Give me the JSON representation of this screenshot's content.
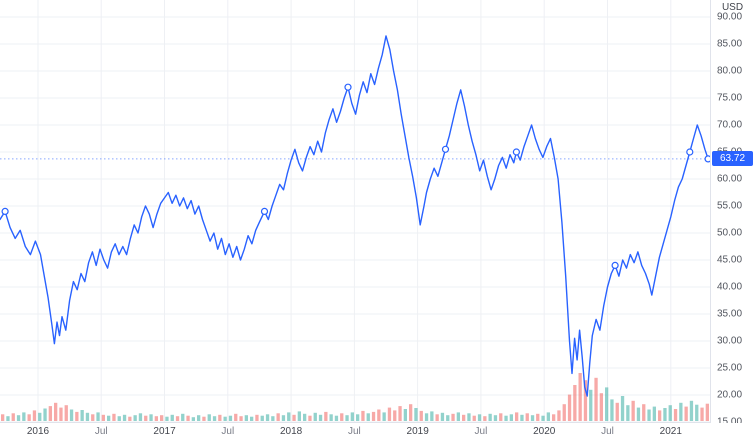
{
  "chart_data": {
    "type": "line",
    "title": "",
    "currency": "USD",
    "last_price": 63.72,
    "last_price_label": "63.72",
    "line_color": "#2962ff",
    "up_color": "#26a69a",
    "down_color": "#ef5350",
    "grid_color": "#eef0f4",
    "xlim": [
      2015.7,
      2021.31
    ],
    "ylim": [
      15,
      90
    ],
    "y_ticks": [
      90,
      85,
      80,
      75,
      70,
      65,
      60,
      55,
      50,
      45,
      40,
      35,
      30,
      25,
      20,
      15
    ],
    "y_tick_labels": [
      "90.00",
      "85.00",
      "80.00",
      "75.00",
      "70.00",
      "65.00",
      "60.00",
      "55.00",
      "50.00",
      "45.00",
      "40.00",
      "35.00",
      "30.00",
      "25.00",
      "20.00",
      "15.00"
    ],
    "x_ticks": [
      {
        "v": 2016,
        "label": "2016",
        "major": true
      },
      {
        "v": 2016.5,
        "label": "Jul",
        "major": false
      },
      {
        "v": 2017,
        "label": "2017",
        "major": true
      },
      {
        "v": 2017.5,
        "label": "Jul",
        "major": false
      },
      {
        "v": 2018,
        "label": "2018",
        "major": true
      },
      {
        "v": 2018.5,
        "label": "Jul",
        "major": false
      },
      {
        "v": 2019,
        "label": "2019",
        "major": true
      },
      {
        "v": 2019.5,
        "label": "Jul",
        "major": false
      },
      {
        "v": 2020,
        "label": "2020",
        "major": true
      },
      {
        "v": 2020.5,
        "label": "Jul",
        "major": false
      },
      {
        "v": 2021,
        "label": "2021",
        "major": true
      }
    ],
    "markers": [
      2015.74,
      2017.79,
      2018.45,
      2019.22,
      2019.78,
      2020.56,
      2021.15,
      2021.295
    ],
    "points": [
      [
        2015.7,
        52.5
      ],
      [
        2015.74,
        54.0
      ],
      [
        2015.78,
        51.0
      ],
      [
        2015.82,
        49.0
      ],
      [
        2015.86,
        50.5
      ],
      [
        2015.9,
        47.5
      ],
      [
        2015.94,
        46.0
      ],
      [
        2015.98,
        48.5
      ],
      [
        2016.02,
        46.0
      ],
      [
        2016.05,
        42.0
      ],
      [
        2016.08,
        38.0
      ],
      [
        2016.11,
        33.0
      ],
      [
        2016.13,
        29.5
      ],
      [
        2016.15,
        33.5
      ],
      [
        2016.17,
        31.0
      ],
      [
        2016.19,
        34.5
      ],
      [
        2016.22,
        32.0
      ],
      [
        2016.25,
        37.5
      ],
      [
        2016.28,
        41.0
      ],
      [
        2016.31,
        39.5
      ],
      [
        2016.34,
        42.5
      ],
      [
        2016.37,
        41.0
      ],
      [
        2016.4,
        44.5
      ],
      [
        2016.43,
        46.5
      ],
      [
        2016.46,
        44.0
      ],
      [
        2016.49,
        47.0
      ],
      [
        2016.52,
        45.0
      ],
      [
        2016.55,
        43.5
      ],
      [
        2016.58,
        46.5
      ],
      [
        2016.61,
        48.0
      ],
      [
        2016.64,
        46.0
      ],
      [
        2016.67,
        47.5
      ],
      [
        2016.7,
        46.0
      ],
      [
        2016.73,
        49.0
      ],
      [
        2016.76,
        51.5
      ],
      [
        2016.79,
        50.0
      ],
      [
        2016.82,
        53.0
      ],
      [
        2016.85,
        55.0
      ],
      [
        2016.88,
        53.5
      ],
      [
        2016.91,
        51.0
      ],
      [
        2016.94,
        53.5
      ],
      [
        2016.97,
        55.5
      ],
      [
        2017.0,
        56.5
      ],
      [
        2017.03,
        57.5
      ],
      [
        2017.06,
        55.5
      ],
      [
        2017.09,
        57.0
      ],
      [
        2017.12,
        55.0
      ],
      [
        2017.15,
        56.5
      ],
      [
        2017.18,
        54.5
      ],
      [
        2017.21,
        56.0
      ],
      [
        2017.24,
        53.5
      ],
      [
        2017.27,
        55.0
      ],
      [
        2017.3,
        52.5
      ],
      [
        2017.33,
        50.5
      ],
      [
        2017.36,
        48.5
      ],
      [
        2017.39,
        50.0
      ],
      [
        2017.42,
        47.0
      ],
      [
        2017.45,
        49.0
      ],
      [
        2017.48,
        46.0
      ],
      [
        2017.51,
        48.0
      ],
      [
        2017.54,
        45.5
      ],
      [
        2017.57,
        47.5
      ],
      [
        2017.6,
        45.0
      ],
      [
        2017.63,
        47.0
      ],
      [
        2017.66,
        49.5
      ],
      [
        2017.69,
        48.0
      ],
      [
        2017.72,
        50.5
      ],
      [
        2017.75,
        52.0
      ],
      [
        2017.79,
        54.0
      ],
      [
        2017.82,
        52.5
      ],
      [
        2017.85,
        55.0
      ],
      [
        2017.88,
        57.0
      ],
      [
        2017.91,
        59.0
      ],
      [
        2017.94,
        58.0
      ],
      [
        2017.97,
        61.0
      ],
      [
        2018.0,
        63.5
      ],
      [
        2018.03,
        65.5
      ],
      [
        2018.06,
        63.0
      ],
      [
        2018.09,
        61.5
      ],
      [
        2018.12,
        64.0
      ],
      [
        2018.15,
        66.0
      ],
      [
        2018.18,
        64.5
      ],
      [
        2018.21,
        67.0
      ],
      [
        2018.24,
        65.0
      ],
      [
        2018.27,
        68.5
      ],
      [
        2018.3,
        71.0
      ],
      [
        2018.33,
        73.0
      ],
      [
        2018.36,
        70.5
      ],
      [
        2018.39,
        72.5
      ],
      [
        2018.42,
        75.0
      ],
      [
        2018.45,
        77.0
      ],
      [
        2018.48,
        74.0
      ],
      [
        2018.51,
        72.0
      ],
      [
        2018.54,
        75.5
      ],
      [
        2018.57,
        78.0
      ],
      [
        2018.6,
        76.0
      ],
      [
        2018.63,
        79.5
      ],
      [
        2018.66,
        77.5
      ],
      [
        2018.69,
        80.5
      ],
      [
        2018.72,
        83.0
      ],
      [
        2018.75,
        86.5
      ],
      [
        2018.78,
        84.0
      ],
      [
        2018.81,
        80.0
      ],
      [
        2018.84,
        76.5
      ],
      [
        2018.87,
        72.0
      ],
      [
        2018.9,
        68.0
      ],
      [
        2018.93,
        64.0
      ],
      [
        2018.96,
        60.5
      ],
      [
        2018.99,
        56.5
      ],
      [
        2019.02,
        51.5
      ],
      [
        2019.05,
        55.0
      ],
      [
        2019.07,
        57.5
      ],
      [
        2019.1,
        60.0
      ],
      [
        2019.13,
        62.0
      ],
      [
        2019.16,
        60.5
      ],
      [
        2019.19,
        63.0
      ],
      [
        2019.22,
        65.5
      ],
      [
        2019.25,
        68.0
      ],
      [
        2019.28,
        71.0
      ],
      [
        2019.31,
        74.0
      ],
      [
        2019.34,
        76.5
      ],
      [
        2019.37,
        73.5
      ],
      [
        2019.4,
        70.0
      ],
      [
        2019.43,
        67.0
      ],
      [
        2019.46,
        64.5
      ],
      [
        2019.49,
        61.5
      ],
      [
        2019.52,
        63.5
      ],
      [
        2019.55,
        60.5
      ],
      [
        2019.58,
        58.0
      ],
      [
        2019.61,
        60.0
      ],
      [
        2019.64,
        62.5
      ],
      [
        2019.67,
        64.0
      ],
      [
        2019.7,
        62.0
      ],
      [
        2019.73,
        64.5
      ],
      [
        2019.76,
        63.0
      ],
      [
        2019.78,
        65.0
      ],
      [
        2019.81,
        63.5
      ],
      [
        2019.84,
        66.0
      ],
      [
        2019.87,
        68.0
      ],
      [
        2019.9,
        70.0
      ],
      [
        2019.93,
        67.5
      ],
      [
        2019.96,
        65.5
      ],
      [
        2019.99,
        64.0
      ],
      [
        2020.02,
        66.0
      ],
      [
        2020.05,
        67.5
      ],
      [
        2020.08,
        64.0
      ],
      [
        2020.11,
        60.0
      ],
      [
        2020.14,
        52.0
      ],
      [
        2020.17,
        42.0
      ],
      [
        2020.2,
        30.0
      ],
      [
        2020.22,
        24.0
      ],
      [
        2020.24,
        30.5
      ],
      [
        2020.26,
        26.5
      ],
      [
        2020.28,
        32.0
      ],
      [
        2020.3,
        27.0
      ],
      [
        2020.32,
        21.5
      ],
      [
        2020.34,
        19.8
      ],
      [
        2020.36,
        26.0
      ],
      [
        2020.38,
        31.0
      ],
      [
        2020.41,
        34.0
      ],
      [
        2020.44,
        32.0
      ],
      [
        2020.47,
        36.5
      ],
      [
        2020.5,
        40.0
      ],
      [
        2020.53,
        42.5
      ],
      [
        2020.56,
        44.0
      ],
      [
        2020.59,
        42.0
      ],
      [
        2020.62,
        45.0
      ],
      [
        2020.65,
        43.5
      ],
      [
        2020.68,
        46.0
      ],
      [
        2020.71,
        44.5
      ],
      [
        2020.74,
        46.5
      ],
      [
        2020.77,
        44.0
      ],
      [
        2020.8,
        42.5
      ],
      [
        2020.83,
        40.5
      ],
      [
        2020.85,
        38.5
      ],
      [
        2020.88,
        42.0
      ],
      [
        2020.91,
        45.5
      ],
      [
        2020.94,
        48.0
      ],
      [
        2020.97,
        50.5
      ],
      [
        2021.0,
        53.0
      ],
      [
        2021.03,
        56.0
      ],
      [
        2021.06,
        58.5
      ],
      [
        2021.09,
        60.0
      ],
      [
        2021.12,
        62.5
      ],
      [
        2021.15,
        65.0
      ],
      [
        2021.18,
        67.5
      ],
      [
        2021.21,
        70.0
      ],
      [
        2021.24,
        68.0
      ],
      [
        2021.27,
        65.5
      ],
      [
        2021.295,
        63.72
      ]
    ],
    "volume": {
      "values": [
        14,
        10,
        16,
        12,
        18,
        14,
        22,
        17,
        26,
        31,
        38,
        28,
        33,
        24,
        19,
        23,
        17,
        14,
        18,
        13,
        11,
        15,
        10,
        13,
        9,
        12,
        16,
        11,
        14,
        10,
        12,
        9,
        13,
        10,
        15,
        11,
        8,
        12,
        9,
        14,
        10,
        13,
        9,
        11,
        15,
        10,
        12,
        9,
        13,
        11,
        14,
        10,
        16,
        12,
        18,
        13,
        20,
        15,
        11,
        17,
        13,
        19,
        14,
        11,
        16,
        12,
        18,
        14,
        21,
        16,
        19,
        24,
        18,
        28,
        22,
        31,
        25,
        35,
        27,
        21,
        16,
        20,
        14,
        17,
        12,
        15,
        18,
        13,
        16,
        11,
        14,
        10,
        15,
        12,
        16,
        11,
        14,
        18,
        13,
        16,
        12,
        15,
        11,
        18,
        14,
        22,
        35,
        55,
        75,
        100,
        85,
        65,
        90,
        58,
        70,
        45,
        38,
        52,
        33,
        42,
        28,
        35,
        24,
        30,
        22,
        27,
        33,
        25,
        38,
        30,
        42,
        34,
        28,
        36
      ],
      "dirs": [
        "duduudduud",
        "ddduduudud",
        "uduuduudud",
        "duududuudu",
        "uduudduudu",
        "uuduuduudu",
        "uduuduuudu",
        "ddudddudud",
        "uuduududud",
        "uduuduudud",
        "uduudddddd",
        "dudduuduud",
        "uduuduudud",
        "uudd"
      ]
    }
  }
}
